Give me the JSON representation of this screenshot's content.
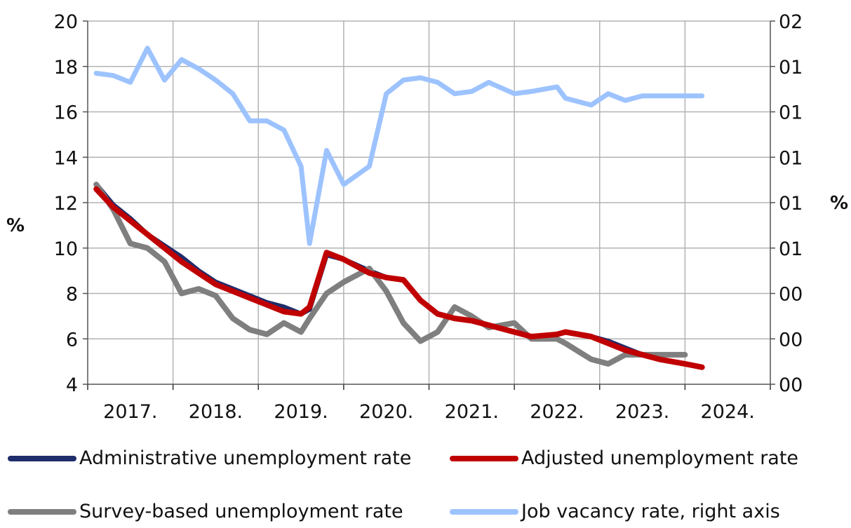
{
  "chart_data": {
    "type": "line",
    "title": "",
    "y_left": {
      "label": "%",
      "min": 4,
      "max": 20,
      "ticks": [
        "20",
        "18",
        "16",
        "14",
        "12",
        "10",
        "8",
        "6",
        "4"
      ]
    },
    "y_right": {
      "label": "%",
      "ticks": [
        "02",
        "01",
        "01",
        "01",
        "01",
        "01",
        "00",
        "00",
        "00"
      ]
    },
    "x_ticks": [
      "2017.",
      "2018.",
      "2019.",
      "2020.",
      "2021.",
      "2022.",
      "2023.",
      "2024."
    ],
    "x_range": [
      2016.5,
      2024.5
    ],
    "grid": true,
    "legend_position": "bottom",
    "series": [
      {
        "name": "Administrative unemployment rate",
        "axis": "left",
        "color": "#1f2d6b",
        "x": [
          2016.6,
          2016.8,
          2017.0,
          2017.2,
          2017.4,
          2017.6,
          2017.8,
          2018.0,
          2018.2,
          2018.4,
          2018.6,
          2018.8,
          2019.0,
          2019.1,
          2019.3,
          2019.5,
          2019.8,
          2020.0,
          2020.2,
          2020.4,
          2020.6,
          2020.8,
          2021.0,
          2021.2,
          2021.5,
          2021.7,
          2022.0,
          2022.1,
          2022.4,
          2022.6,
          2022.8,
          2023.0,
          2023.2,
          2023.5,
          2023.7
        ],
        "values": [
          12.8,
          11.9,
          11.3,
          10.6,
          10.1,
          9.6,
          9.0,
          8.5,
          8.2,
          7.9,
          7.6,
          7.4,
          7.1,
          7.3,
          9.7,
          9.5,
          9.0,
          8.7,
          8.6,
          7.7,
          7.1,
          6.9,
          6.8,
          6.6,
          6.3,
          6.1,
          6.2,
          6.3,
          6.1,
          5.9,
          5.6,
          5.3,
          5.1,
          4.9,
          4.75
        ]
      },
      {
        "name": "Adjusted unemployment rate",
        "axis": "left",
        "color": "#c00000",
        "x": [
          2016.6,
          2016.8,
          2017.0,
          2017.2,
          2017.4,
          2017.6,
          2017.8,
          2018.0,
          2018.2,
          2018.4,
          2018.6,
          2018.8,
          2019.0,
          2019.1,
          2019.3,
          2019.5,
          2019.8,
          2020.0,
          2020.2,
          2020.4,
          2020.6,
          2020.8,
          2021.0,
          2021.2,
          2021.5,
          2021.7,
          2022.0,
          2022.1,
          2022.4,
          2022.6,
          2022.8,
          2023.0,
          2023.2,
          2023.5,
          2023.7
        ],
        "values": [
          12.6,
          11.8,
          11.2,
          10.6,
          10.0,
          9.4,
          8.9,
          8.4,
          8.1,
          7.8,
          7.5,
          7.2,
          7.1,
          7.4,
          9.8,
          9.5,
          8.9,
          8.7,
          8.6,
          7.7,
          7.1,
          6.9,
          6.8,
          6.6,
          6.3,
          6.1,
          6.2,
          6.3,
          6.1,
          5.8,
          5.5,
          5.3,
          5.1,
          4.9,
          4.75
        ]
      },
      {
        "name": "Survey-based unemployment rate",
        "axis": "left",
        "color": "#7f7f7f",
        "x": [
          2016.6,
          2016.8,
          2017.0,
          2017.2,
          2017.4,
          2017.6,
          2017.8,
          2018.0,
          2018.2,
          2018.4,
          2018.6,
          2018.8,
          2019.0,
          2019.1,
          2019.3,
          2019.5,
          2019.8,
          2020.0,
          2020.2,
          2020.4,
          2020.6,
          2020.8,
          2021.0,
          2021.2,
          2021.5,
          2021.7,
          2022.0,
          2022.1,
          2022.4,
          2022.6,
          2022.8,
          2023.0,
          2023.2,
          2023.5
        ],
        "values": [
          12.8,
          11.7,
          10.2,
          10.0,
          9.4,
          8.0,
          8.2,
          7.9,
          6.9,
          6.4,
          6.2,
          6.7,
          6.3,
          6.9,
          8.0,
          8.5,
          9.1,
          8.1,
          6.7,
          5.9,
          6.3,
          7.4,
          7.0,
          6.5,
          6.7,
          6.0,
          6.0,
          5.8,
          5.1,
          4.9,
          5.3,
          5.3,
          5.3,
          5.3
        ]
      },
      {
        "name": "Job vacancy rate, right axis",
        "axis": "right",
        "color": "#9dc3ff",
        "x": [
          2016.6,
          2016.8,
          2017.0,
          2017.2,
          2017.4,
          2017.6,
          2017.8,
          2018.0,
          2018.2,
          2018.4,
          2018.6,
          2018.8,
          2019.0,
          2019.1,
          2019.3,
          2019.5,
          2019.8,
          2020.0,
          2020.2,
          2020.4,
          2020.6,
          2020.8,
          2021.0,
          2021.2,
          2021.5,
          2021.7,
          2022.0,
          2022.1,
          2022.4,
          2022.6,
          2022.8,
          2023.0,
          2023.2,
          2023.5,
          2023.7
        ],
        "values": [
          17.7,
          17.6,
          17.3,
          18.8,
          17.4,
          18.3,
          17.9,
          17.4,
          16.8,
          15.6,
          15.6,
          15.2,
          13.6,
          10.2,
          14.3,
          12.8,
          13.6,
          16.8,
          17.4,
          17.5,
          17.3,
          16.8,
          16.9,
          17.3,
          16.8,
          16.9,
          17.1,
          16.6,
          16.3,
          16.8,
          16.5,
          16.7,
          16.7,
          16.7,
          16.7
        ]
      }
    ],
    "legend": [
      "Administrative unemployment rate",
      "Adjusted unemployment rate",
      "Survey-based unemployment rate",
      "Job vacancy rate, right axis"
    ]
  }
}
